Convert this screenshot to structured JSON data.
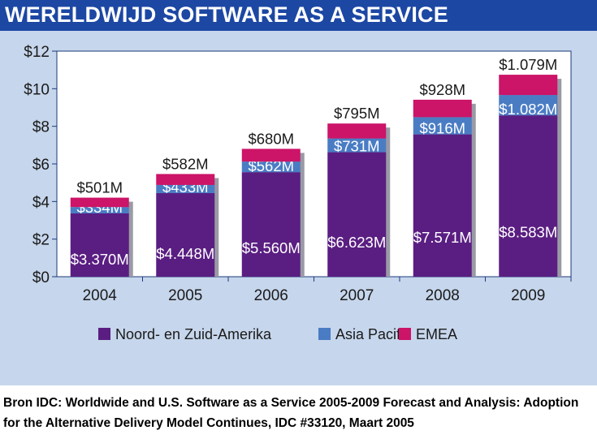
{
  "title": "WERELDWIJD SOFTWARE AS A SERVICE",
  "source_lines": [
    "Bron IDC: Worldwide and U.S. Software as a Service 2005-2009 Forecast and Analysis: Adoption",
    "for the Alternative Delivery Model Continues, IDC #33120, Maart 2005"
  ],
  "colors": {
    "title_bg": "#1c47a3",
    "panel_bg": "#c6d6ec",
    "americas": "#5a1e82",
    "asia_pacific": "#4a7cc4",
    "emea": "#cc1468"
  },
  "chart_data": {
    "type": "bar",
    "stacked": true,
    "categories": [
      "2004",
      "2005",
      "2006",
      "2007",
      "2008",
      "2009"
    ],
    "ylim": [
      0,
      12
    ],
    "yticks": [
      0,
      2,
      4,
      6,
      8,
      10,
      12
    ],
    "ytick_labels": [
      "$0",
      "$2",
      "$4",
      "$6",
      "$8",
      "$10",
      "$12"
    ],
    "legend_position": "bottom",
    "grid": false,
    "series": [
      {
        "name": "Noord- en Zuid-Amerika",
        "color": "#5a1e82",
        "values": [
          3.37,
          4.448,
          5.56,
          6.623,
          7.571,
          8.583
        ],
        "labels": [
          "$3.370M",
          "$4.448M",
          "$5.560M",
          "$6.623M",
          "$7.571M",
          "$8.583M"
        ]
      },
      {
        "name": "Asia Pacific",
        "color": "#4a7cc4",
        "values": [
          0.334,
          0.433,
          0.562,
          0.731,
          0.916,
          1.082
        ],
        "labels": [
          "$334M",
          "$433M",
          "$562M",
          "$731M",
          "$916M",
          "$1.082M"
        ]
      },
      {
        "name": "EMEA",
        "color": "#cc1468",
        "values": [
          0.501,
          0.582,
          0.68,
          0.795,
          0.928,
          1.079
        ],
        "labels": [
          "$501M",
          "$582M",
          "$680M",
          "$795M",
          "$928M",
          "$1.079M"
        ]
      }
    ]
  }
}
